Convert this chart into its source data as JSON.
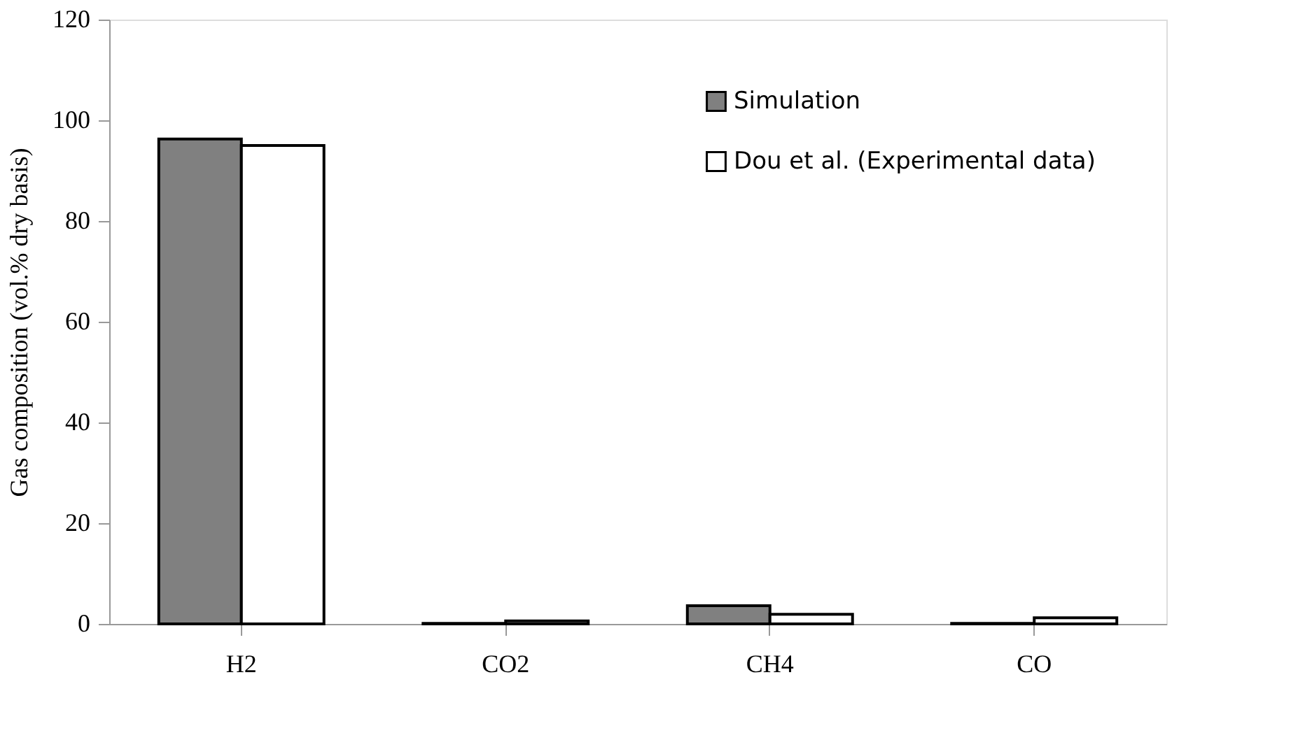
{
  "chart_data": {
    "type": "bar",
    "ylabel": "Gas composition (vol.% dry basis)",
    "categories": [
      "H2",
      "CO2",
      "CH4",
      "CO"
    ],
    "series": [
      {
        "name": "Simulation",
        "color": "#808080",
        "values": [
          96.3,
          0.1,
          3.6,
          0.1
        ]
      },
      {
        "name": "Dou et al. (Experimental data)",
        "color": "#ffffff",
        "values": [
          95.0,
          0.6,
          1.9,
          1.2
        ]
      }
    ],
    "ylim": [
      0,
      120
    ],
    "yticks": [
      0,
      20,
      40,
      60,
      80,
      100,
      120
    ],
    "grid": false,
    "legend": "top right"
  }
}
